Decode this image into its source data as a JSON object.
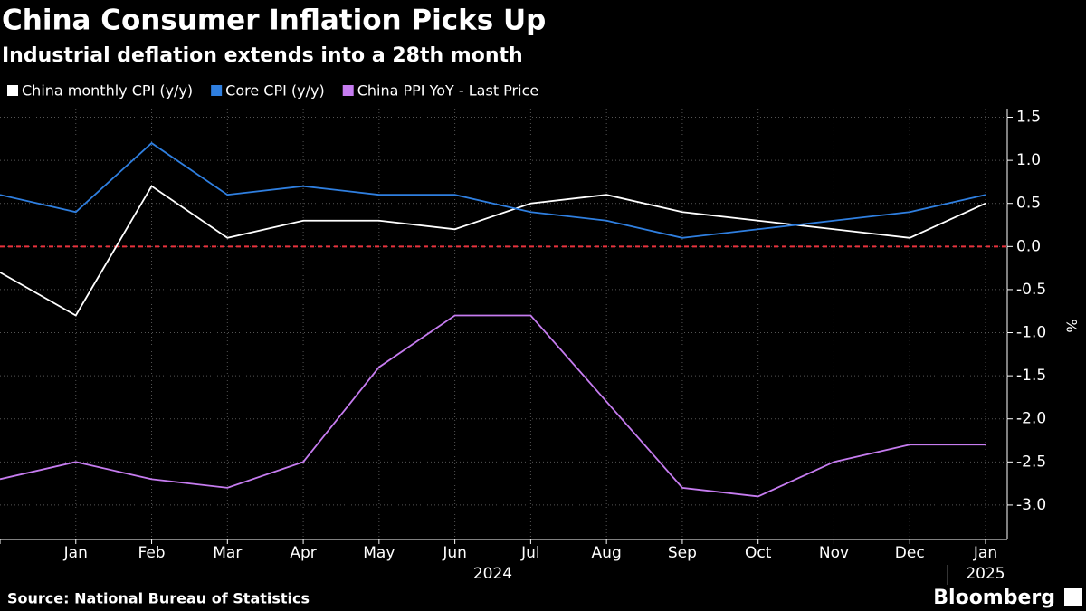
{
  "chart_data": {
    "type": "line",
    "title": "China Consumer Inflation Picks Up",
    "subtitle": "Industrial deflation extends into a 28th month",
    "categories": [
      null,
      "Jan",
      "Feb",
      "Mar",
      "Apr",
      "May",
      "Jun",
      "Jul",
      "Aug",
      "Sep",
      "Oct",
      "Nov",
      "Dec",
      "Jan"
    ],
    "x_groups": [
      {
        "label": "2024",
        "from": 1,
        "to": 12
      },
      {
        "label": "2025",
        "from": 13,
        "to": 13
      }
    ],
    "series": [
      {
        "name": "China monthly CPI (y/y)",
        "color": "#ffffff",
        "values": [
          -0.3,
          -0.8,
          0.7,
          0.1,
          0.3,
          0.3,
          0.2,
          0.5,
          0.6,
          0.4,
          0.3,
          0.2,
          0.1,
          0.5
        ]
      },
      {
        "name": "Core CPI (y/y)",
        "color": "#2f7fe0",
        "values": [
          0.6,
          0.4,
          1.2,
          0.6,
          0.7,
          0.6,
          0.6,
          0.4,
          0.3,
          0.1,
          0.2,
          0.3,
          0.4,
          0.6
        ]
      },
      {
        "name": "China PPI YoY - Last Price",
        "color": "#c67cf0",
        "values": [
          -2.7,
          -2.5,
          -2.7,
          -2.8,
          -2.5,
          -1.4,
          -0.8,
          -0.8,
          -1.8,
          -2.8,
          -2.9,
          -2.5,
          -2.3,
          -2.3
        ]
      }
    ],
    "y_label": "%",
    "ylim": [
      -3.4,
      1.6
    ],
    "yticks": [
      1.5,
      {
        "value": 1.0,
        "label": "1.0"
      },
      0.5,
      {
        "value": 0.0,
        "label": "0.0"
      },
      -0.5,
      {
        "value": -1.0,
        "label": "-1.0"
      },
      -1.5,
      {
        "value": -2.0,
        "label": "-2.0"
      },
      -2.5,
      {
        "value": -3.0,
        "label": "-3.0"
      }
    ],
    "grid": true,
    "zero_line_color": "#e8323c",
    "source": "Source: National Bureau of Statistics",
    "brand": "Bloomberg"
  }
}
